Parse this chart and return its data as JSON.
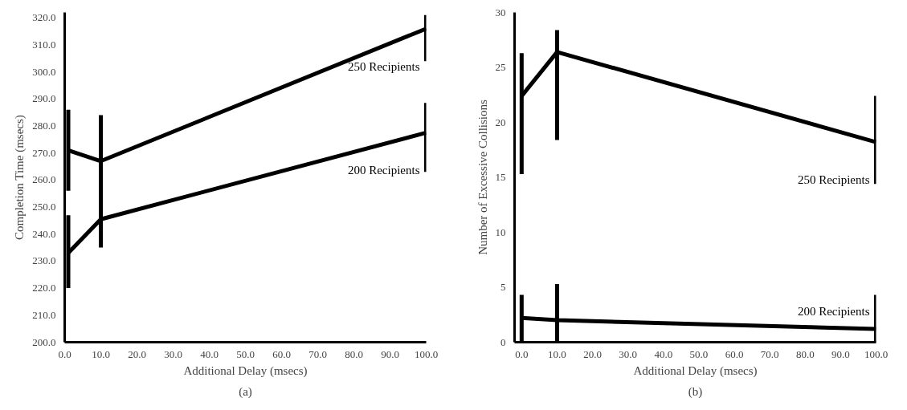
{
  "chart_data": [
    {
      "type": "line",
      "xlabel": "Additional Delay (msecs)",
      "ylabel": "Completion Time (msecs)",
      "annotations": [
        "(a)"
      ],
      "xlim": [
        0,
        100
      ],
      "xticks": [
        {
          "value": 0,
          "label": "0.0"
        },
        {
          "value": 10,
          "label": "10.0"
        },
        {
          "value": 20,
          "label": "20.0"
        },
        {
          "value": 30,
          "label": "30.0"
        },
        {
          "value": 40,
          "label": "40.0"
        },
        {
          "value": 50,
          "label": "50.0"
        },
        {
          "value": 60,
          "label": "60.0"
        },
        {
          "value": 70,
          "label": "70.0"
        },
        {
          "value": 80,
          "label": "80.0"
        },
        {
          "value": 90,
          "label": "90.0"
        },
        {
          "value": 100,
          "label": "100.0"
        }
      ],
      "ylim": [
        200,
        322
      ],
      "yticks": [
        {
          "value": 200,
          "label": "200.0"
        },
        {
          "value": 210,
          "label": "210.0"
        },
        {
          "value": 220,
          "label": "220.0"
        },
        {
          "value": 230,
          "label": "230.0"
        },
        {
          "value": 240,
          "label": "240.0"
        },
        {
          "value": 250,
          "label": "250.0"
        },
        {
          "value": 260,
          "label": "260.0"
        },
        {
          "value": 270,
          "label": "270.0"
        },
        {
          "value": 280,
          "label": "280.0"
        },
        {
          "value": 290,
          "label": "290.0"
        },
        {
          "value": 300,
          "label": "300.0"
        },
        {
          "value": 310,
          "label": "310.0"
        },
        {
          "value": 320,
          "label": "320.0"
        }
      ],
      "grid": false,
      "marker": "none",
      "line_style": "solid",
      "x": [
        1,
        10,
        100
      ],
      "series": [
        {
          "name": "250 Recipients",
          "color": "#000000",
          "values": [
            271,
            267,
            316
          ],
          "errors": [
            [
              256,
              286
            ],
            [
              250,
              284
            ],
            [
              304,
              321
            ]
          ]
        },
        {
          "name": "200 Recipients",
          "color": "#000000",
          "values": [
            233,
            245.5,
            277.5
          ],
          "errors": [
            [
              220,
              247
            ],
            [
              235,
              255
            ],
            [
              263,
              288.5
            ]
          ]
        }
      ]
    },
    {
      "type": "line",
      "xlabel": "Additional Delay (msecs)",
      "ylabel": "Number of Excessive Collisions",
      "annotations": [
        "(b)"
      ],
      "xlim": [
        -2,
        100
      ],
      "xticks": [
        {
          "value": 0,
          "label": "0.0"
        },
        {
          "value": 10,
          "label": "10.0"
        },
        {
          "value": 20,
          "label": "20.0"
        },
        {
          "value": 30,
          "label": "30.0"
        },
        {
          "value": 40,
          "label": "40.0"
        },
        {
          "value": 50,
          "label": "50.0"
        },
        {
          "value": 60,
          "label": "60.0"
        },
        {
          "value": 70,
          "label": "70.0"
        },
        {
          "value": 80,
          "label": "80.0"
        },
        {
          "value": 90,
          "label": "90.0"
        },
        {
          "value": 100,
          "label": "100.0"
        }
      ],
      "ylim": [
        0,
        30
      ],
      "yticks": [
        0,
        5,
        10,
        15,
        20,
        25,
        30
      ],
      "grid": false,
      "marker": "none",
      "line_style": "solid",
      "x": [
        0,
        10,
        100
      ],
      "series": [
        {
          "name": "250 Recipients",
          "color": "#000000",
          "values": [
            22.4,
            26.4,
            18.2
          ],
          "errors": [
            [
              15.3,
              26.3
            ],
            [
              18.4,
              28.4
            ],
            [
              14.4,
              22.4
            ]
          ]
        },
        {
          "name": "200 Recipients",
          "color": "#000000",
          "values": [
            2.2,
            2.0,
            1.2
          ],
          "errors": [
            [
              0,
              4.3
            ],
            [
              0,
              5.3
            ],
            [
              0,
              4.3
            ]
          ]
        }
      ]
    }
  ]
}
